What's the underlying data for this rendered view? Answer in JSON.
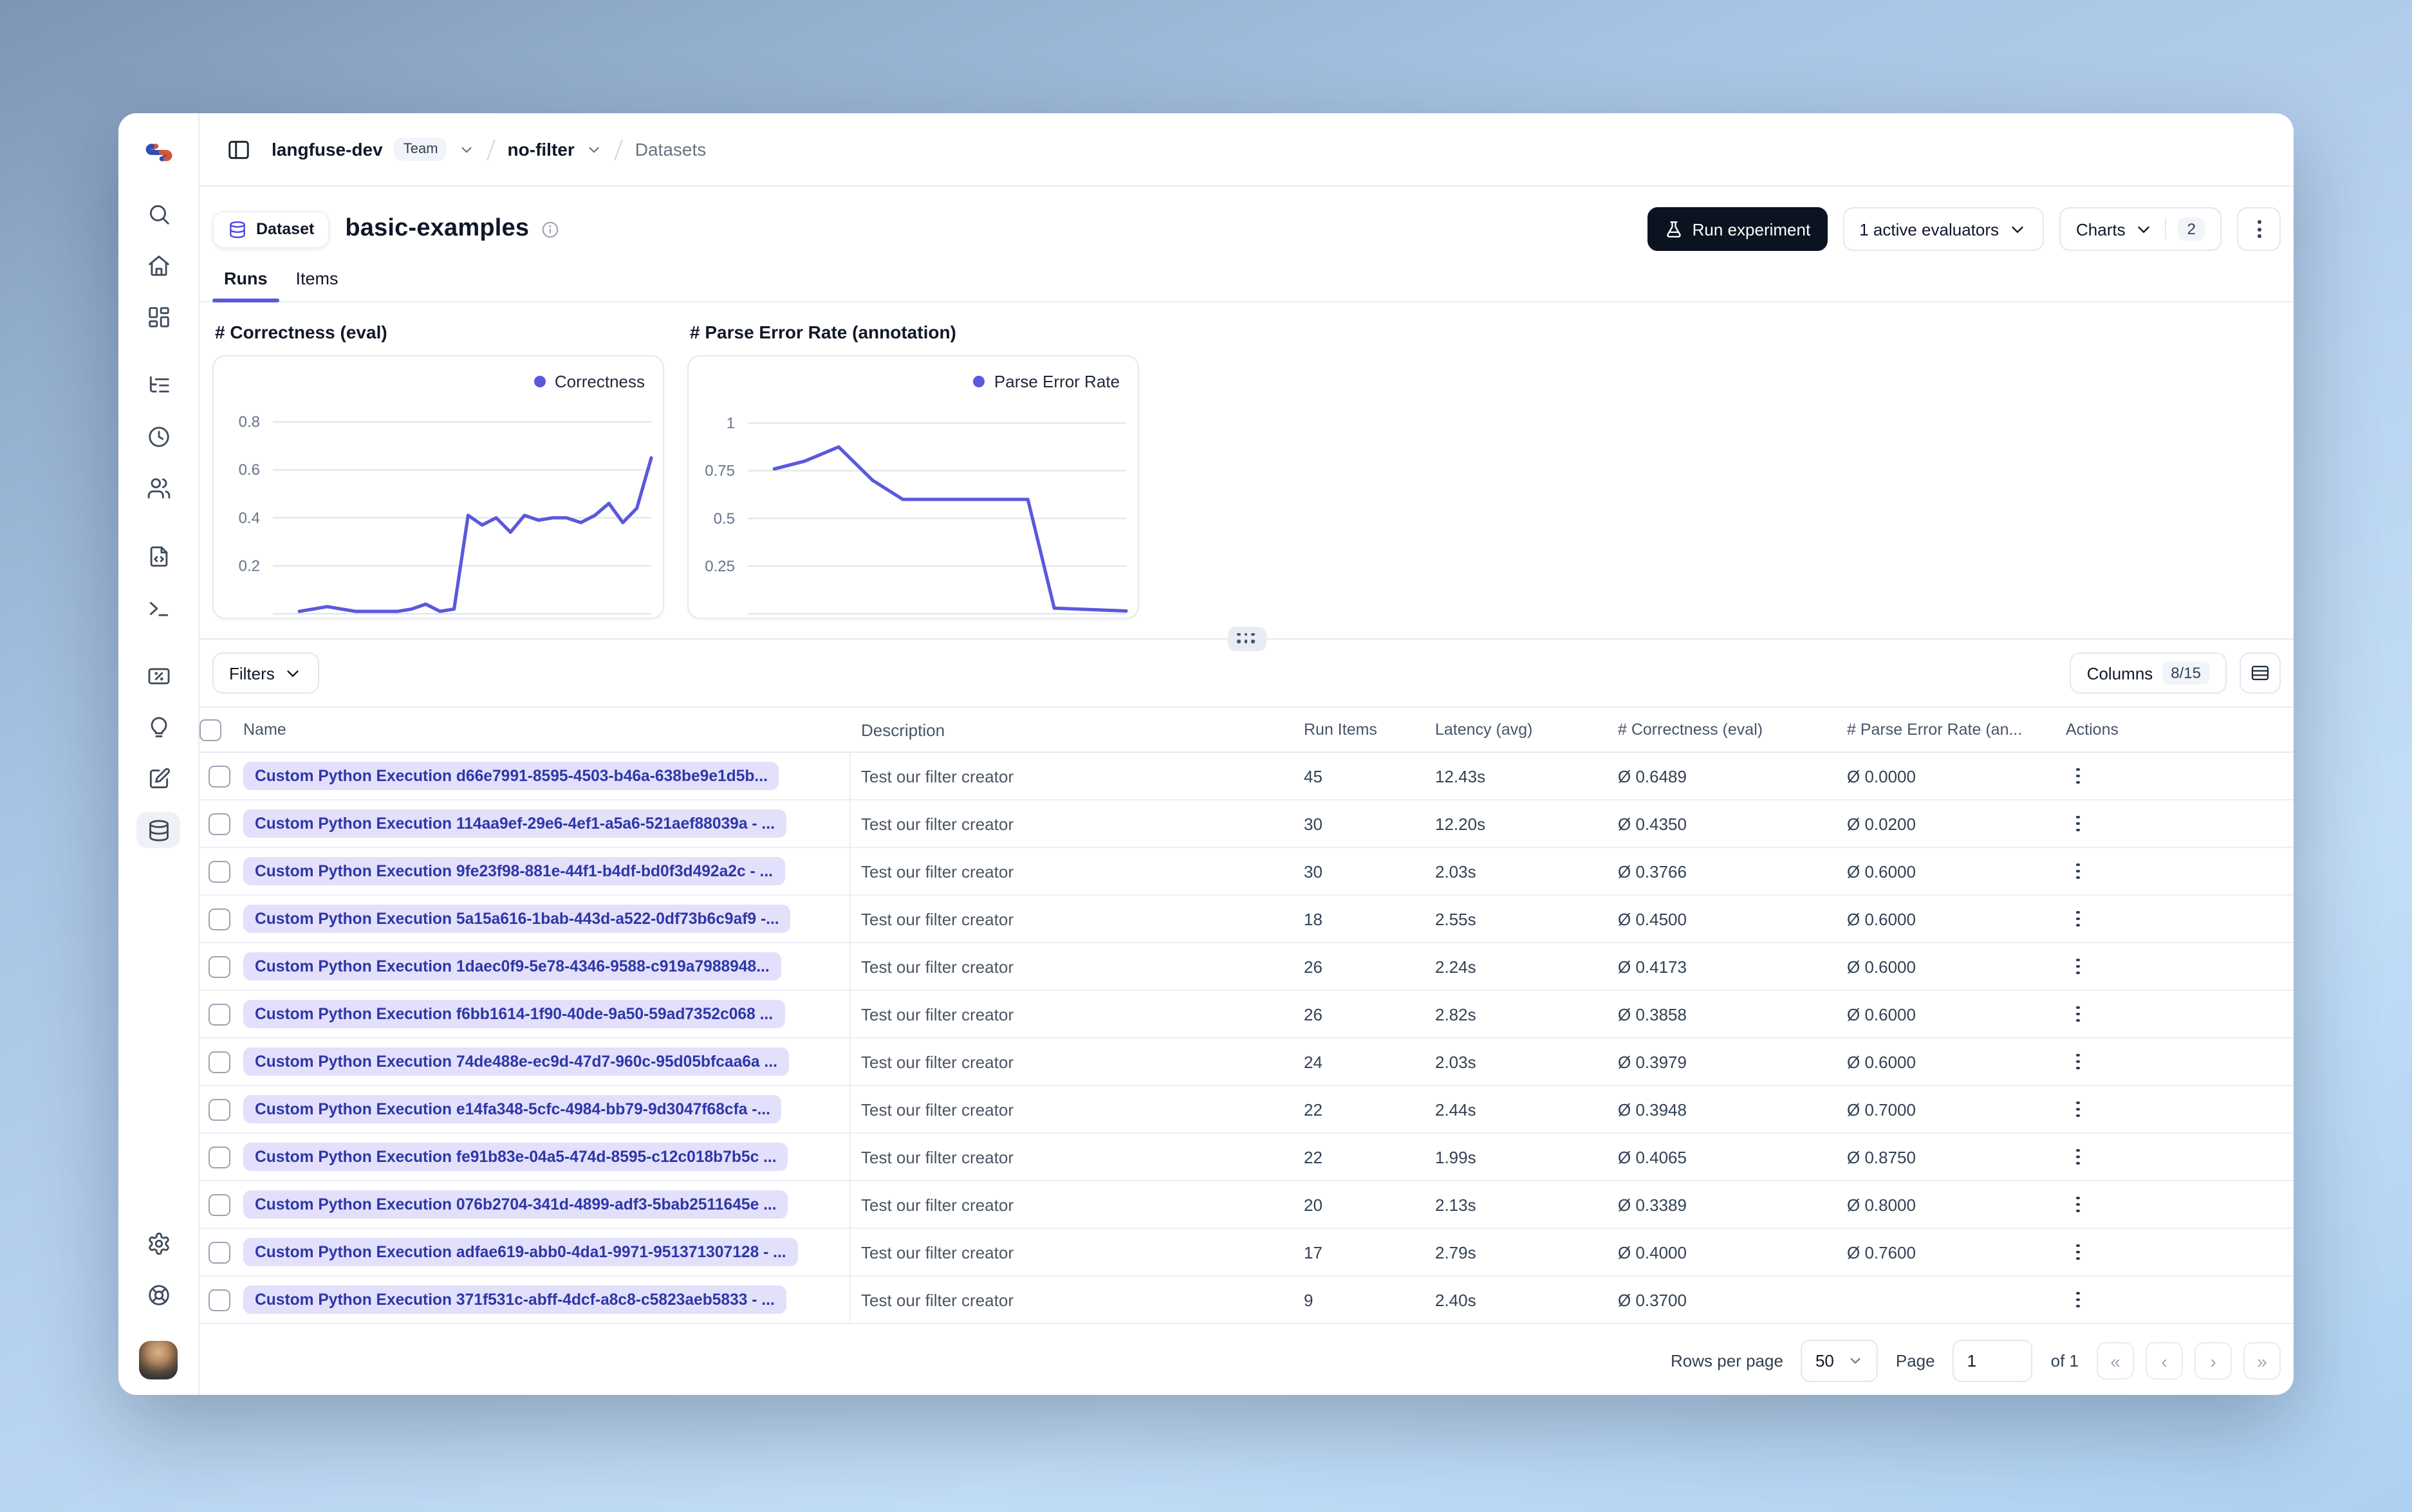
{
  "breadcrumb": {
    "org": "langfuse-dev",
    "org_badge": "Team",
    "project": "no-filter",
    "section": "Datasets"
  },
  "header": {
    "entity_label": "Dataset",
    "title": "basic-examples",
    "run_experiment_label": "Run experiment",
    "evaluators_label": "1 active evaluators",
    "charts_label": "Charts",
    "charts_count": "2"
  },
  "tabs": {
    "runs": "Runs",
    "items": "Items"
  },
  "accent_colors": {
    "indigo": "#5b58dd",
    "pill_bg": "#e2e0fb",
    "pill_text": "#2f36a8",
    "dark_button": "#0b1220"
  },
  "sidebar": {
    "active": "datasets",
    "items": [
      "search-icon",
      "home-icon",
      "dashboards-icon",
      "tracing-icon",
      "sessions-icon",
      "users-icon",
      "prompts-icon",
      "playground-icon",
      "evaluators-icon",
      "insights-icon",
      "annotations-icon",
      "datasets-icon",
      "settings-icon",
      "support-icon",
      "user-avatar"
    ]
  },
  "chart_data": [
    {
      "type": "line",
      "title": "# Correctness (eval)",
      "legend_position": "top-right",
      "grid": true,
      "y_ticks": [
        0.2,
        0.4,
        0.6,
        0.8
      ],
      "y_max": 0.89,
      "ylim": [
        0,
        0.89
      ],
      "series": [
        {
          "name": "Correctness",
          "color": "#5b58dd",
          "x_fraction": [
            0.07,
            0.107,
            0.144,
            0.181,
            0.218,
            0.256,
            0.293,
            0.33,
            0.367,
            0.404,
            0.442,
            0.479,
            0.516,
            0.553,
            0.59,
            0.628,
            0.665,
            0.702,
            0.739,
            0.776,
            0.814,
            0.851,
            0.888,
            0.925,
            0.962,
            1.0
          ],
          "values": [
            0.01,
            0.02,
            0.03,
            0.02,
            0.01,
            0.01,
            0.01,
            0.01,
            0.02,
            0.04,
            0.01,
            0.02,
            0.41,
            0.37,
            0.4,
            0.34,
            0.41,
            0.39,
            0.4,
            0.4,
            0.38,
            0.41,
            0.46,
            0.38,
            0.44,
            0.65
          ]
        }
      ]
    },
    {
      "type": "line",
      "title": "# Parse Error Rate (annotation)",
      "legend_position": "top-right",
      "grid": true,
      "y_ticks": [
        0.25,
        0.5,
        0.75,
        1
      ],
      "y_max": 1.12,
      "ylim": [
        0,
        1.12
      ],
      "series": [
        {
          "name": "Parse Error Rate",
          "color": "#5b58dd",
          "x_fraction": [
            0.07,
            0.15,
            0.24,
            0.33,
            0.41,
            0.55,
            0.66,
            0.74,
            0.81,
            1.0
          ],
          "values": [
            0.76,
            0.8,
            0.875,
            0.7,
            0.6,
            0.6,
            0.6,
            0.6,
            0.03,
            0.015
          ]
        }
      ]
    }
  ],
  "toolbar": {
    "filters_label": "Filters",
    "columns_label": "Columns",
    "columns_count": "8/15"
  },
  "table": {
    "headers": [
      "Name",
      "Description",
      "Run Items",
      "Latency (avg)",
      "# Correctness (eval)",
      "# Parse Error Rate (an...",
      "Actions"
    ],
    "rows": [
      {
        "name": "Custom Python Execution d66e7991-8595-4503-b46a-638be9e1d5b...",
        "description": "Test our filter creator",
        "run_items": "45",
        "latency": "12.43s",
        "correctness": "Ø 0.6489",
        "parse_error_rate": "Ø 0.0000"
      },
      {
        "name": "Custom Python Execution 114aa9ef-29e6-4ef1-a5a6-521aef88039a - ...",
        "description": "Test our filter creator",
        "run_items": "30",
        "latency": "12.20s",
        "correctness": "Ø 0.4350",
        "parse_error_rate": "Ø 0.0200"
      },
      {
        "name": "Custom Python Execution 9fe23f98-881e-44f1-b4df-bd0f3d492a2c - ...",
        "description": "Test our filter creator",
        "run_items": "30",
        "latency": "2.03s",
        "correctness": "Ø 0.3766",
        "parse_error_rate": "Ø 0.6000"
      },
      {
        "name": "Custom Python Execution 5a15a616-1bab-443d-a522-0df73b6c9af9 -...",
        "description": "Test our filter creator",
        "run_items": "18",
        "latency": "2.55s",
        "correctness": "Ø 0.4500",
        "parse_error_rate": "Ø 0.6000"
      },
      {
        "name": "Custom Python Execution 1daec0f9-5e78-4346-9588-c919a7988948...",
        "description": "Test our filter creator",
        "run_items": "26",
        "latency": "2.24s",
        "correctness": "Ø 0.4173",
        "parse_error_rate": "Ø 0.6000"
      },
      {
        "name": "Custom Python Execution f6bb1614-1f90-40de-9a50-59ad7352c068 ...",
        "description": "Test our filter creator",
        "run_items": "26",
        "latency": "2.82s",
        "correctness": "Ø 0.3858",
        "parse_error_rate": "Ø 0.6000"
      },
      {
        "name": "Custom Python Execution 74de488e-ec9d-47d7-960c-95d05bfcaa6a ...",
        "description": "Test our filter creator",
        "run_items": "24",
        "latency": "2.03s",
        "correctness": "Ø 0.3979",
        "parse_error_rate": "Ø 0.6000"
      },
      {
        "name": "Custom Python Execution e14fa348-5cfc-4984-bb79-9d3047f68cfa -...",
        "description": "Test our filter creator",
        "run_items": "22",
        "latency": "2.44s",
        "correctness": "Ø 0.3948",
        "parse_error_rate": "Ø 0.7000"
      },
      {
        "name": "Custom Python Execution fe91b83e-04a5-474d-8595-c12c018b7b5c ...",
        "description": "Test our filter creator",
        "run_items": "22",
        "latency": "1.99s",
        "correctness": "Ø 0.4065",
        "parse_error_rate": "Ø 0.8750"
      },
      {
        "name": "Custom Python Execution 076b2704-341d-4899-adf3-5bab2511645e ...",
        "description": "Test our filter creator",
        "run_items": "20",
        "latency": "2.13s",
        "correctness": "Ø 0.3389",
        "parse_error_rate": "Ø 0.8000"
      },
      {
        "name": "Custom Python Execution adfae619-abb0-4da1-9971-951371307128 - ...",
        "description": "Test our filter creator",
        "run_items": "17",
        "latency": "2.79s",
        "correctness": "Ø 0.4000",
        "parse_error_rate": "Ø 0.7600"
      },
      {
        "name": "Custom Python Execution 371f531c-abff-4dcf-a8c8-c5823aeb5833 - ...",
        "description": "Test our filter creator",
        "run_items": "9",
        "latency": "2.40s",
        "correctness": "Ø 0.3700",
        "parse_error_rate": ""
      }
    ]
  },
  "pagination": {
    "rows_per_page_label": "Rows per page",
    "rows_per_page_value": "50",
    "page_label": "Page",
    "page_value": "1",
    "of_label": "of 1",
    "first_icon": "«",
    "prev_icon": "‹",
    "next_icon": "›",
    "last_icon": "»"
  }
}
